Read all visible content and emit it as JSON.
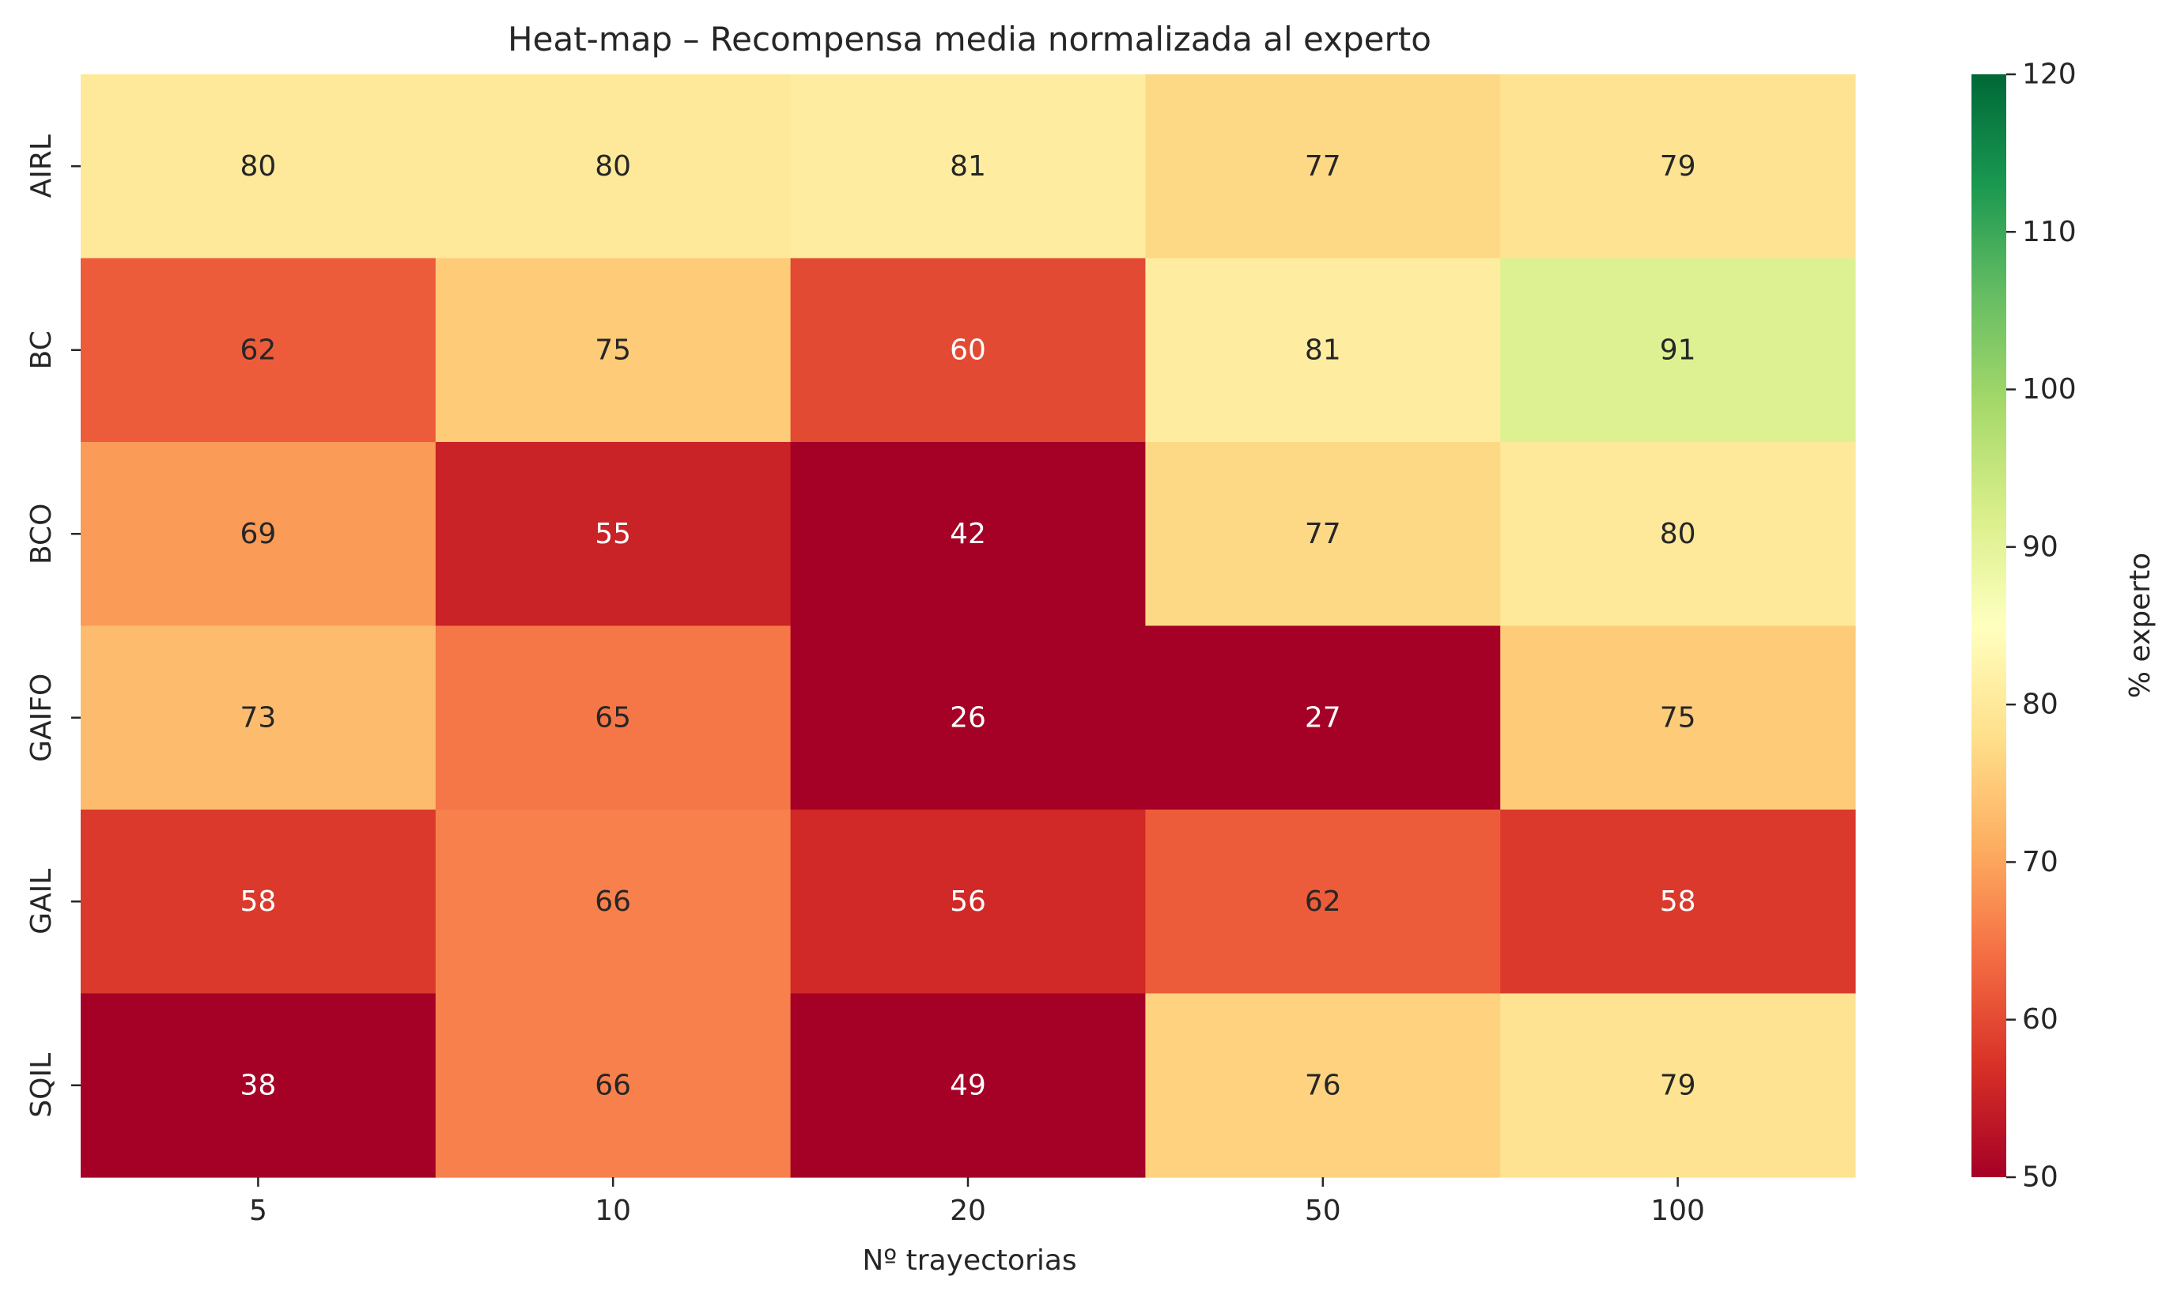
{
  "chart_data": {
    "type": "heatmap",
    "title": "Heat-map – Recompensa media normalizada al experto",
    "xlabel": "Nº trayectorias",
    "ylabel": "",
    "x_categories": [
      "5",
      "10",
      "20",
      "50",
      "100"
    ],
    "y_categories": [
      "AIRL",
      "BC",
      "BCO",
      "GAIFO",
      "GAIL",
      "SQIL"
    ],
    "values": [
      [
        80,
        80,
        81,
        77,
        79
      ],
      [
        62,
        75,
        60,
        81,
        91
      ],
      [
        69,
        55,
        42,
        77,
        80
      ],
      [
        73,
        65,
        26,
        27,
        75
      ],
      [
        58,
        66,
        56,
        62,
        58
      ],
      [
        38,
        66,
        49,
        76,
        79
      ]
    ],
    "colormap": "RdYlGn",
    "vmin": 50,
    "vmax": 120,
    "colorbar": {
      "label": "% experto",
      "ticks": [
        "50",
        "60",
        "70",
        "80",
        "90",
        "100",
        "110",
        "120"
      ]
    }
  }
}
